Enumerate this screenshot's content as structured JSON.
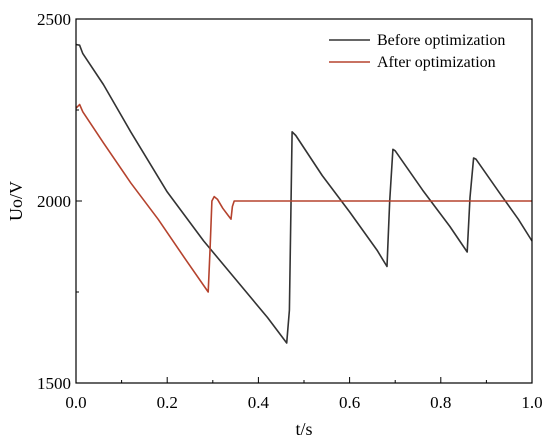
{
  "chart_data": {
    "type": "line",
    "xlabel": "t/s",
    "ylabel": "Uo/V",
    "xlim": [
      0.0,
      1.0
    ],
    "ylim": [
      1500,
      2500
    ],
    "xticks": [
      0.0,
      0.2,
      0.4,
      0.6,
      0.8,
      1.0
    ],
    "xtick_labels": [
      "0.0",
      "0.2",
      "0.4",
      "0.6",
      "0.8",
      "1.0"
    ],
    "yticks": [
      1500,
      2000,
      2500
    ],
    "ytick_labels": [
      "1500",
      "2000",
      "2500"
    ],
    "grid": false,
    "legend_position": "top-right",
    "series": [
      {
        "name": "Before optimization",
        "color": "#333333",
        "points": [
          [
            0.0,
            2430
          ],
          [
            0.008,
            2428
          ],
          [
            0.015,
            2405
          ],
          [
            0.06,
            2320
          ],
          [
            0.12,
            2190
          ],
          [
            0.2,
            2025
          ],
          [
            0.28,
            1890
          ],
          [
            0.35,
            1785
          ],
          [
            0.42,
            1680
          ],
          [
            0.462,
            1610
          ],
          [
            0.468,
            1700
          ],
          [
            0.474,
            2190
          ],
          [
            0.482,
            2180
          ],
          [
            0.54,
            2070
          ],
          [
            0.6,
            1970
          ],
          [
            0.66,
            1865
          ],
          [
            0.682,
            1820
          ],
          [
            0.688,
            2000
          ],
          [
            0.695,
            2142
          ],
          [
            0.7,
            2138
          ],
          [
            0.76,
            2030
          ],
          [
            0.82,
            1930
          ],
          [
            0.858,
            1860
          ],
          [
            0.864,
            2010
          ],
          [
            0.872,
            2118
          ],
          [
            0.877,
            2115
          ],
          [
            0.93,
            2020
          ],
          [
            0.97,
            1950
          ],
          [
            1.0,
            1890
          ]
        ]
      },
      {
        "name": "After optimization",
        "color": "#b5432e",
        "points": [
          [
            0.0,
            2255
          ],
          [
            0.008,
            2265
          ],
          [
            0.015,
            2245
          ],
          [
            0.06,
            2160
          ],
          [
            0.12,
            2050
          ],
          [
            0.18,
            1950
          ],
          [
            0.24,
            1840
          ],
          [
            0.29,
            1750
          ],
          [
            0.294,
            1870
          ],
          [
            0.298,
            2000
          ],
          [
            0.303,
            2012
          ],
          [
            0.31,
            2005
          ],
          [
            0.322,
            1980
          ],
          [
            0.334,
            1960
          ],
          [
            0.34,
            1950
          ],
          [
            0.343,
            1985
          ],
          [
            0.347,
            2000
          ],
          [
            1.0,
            2000
          ]
        ]
      }
    ]
  }
}
